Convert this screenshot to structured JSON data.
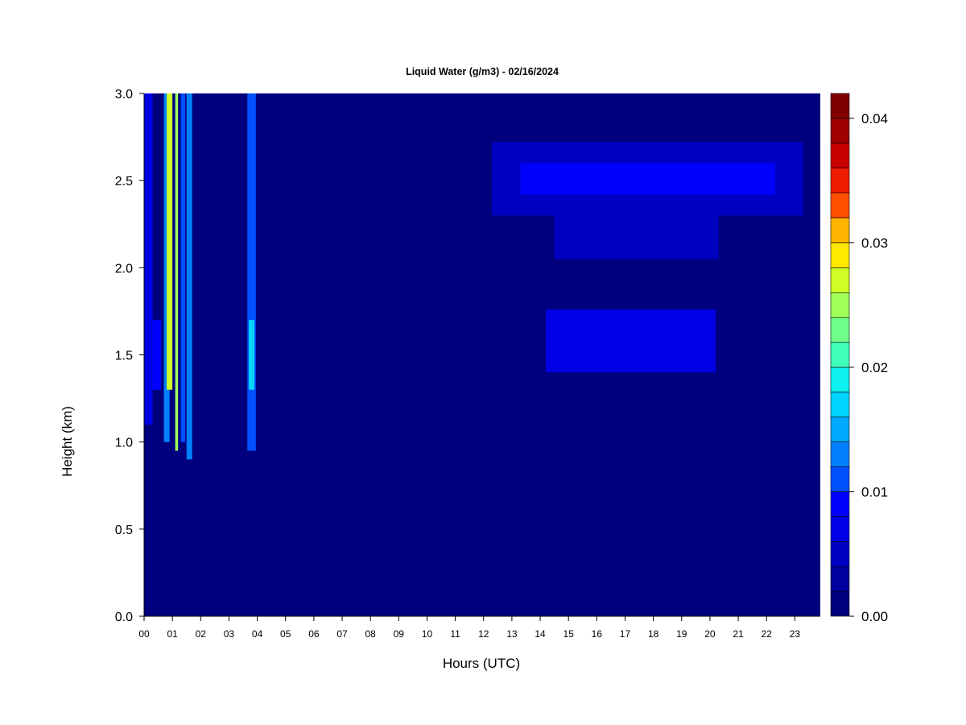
{
  "chart_data": {
    "type": "heatmap",
    "title": "Liquid Water (g/m3) - 02/16/2024",
    "xlabel": "Hours (UTC)",
    "ylabel": "Height (km)",
    "xlim": [
      0,
      23.9
    ],
    "ylim": [
      0,
      3.0
    ],
    "x_ticks": [
      "00",
      "01",
      "02",
      "03",
      "04",
      "05",
      "06",
      "07",
      "08",
      "09",
      "10",
      "11",
      "12",
      "13",
      "14",
      "15",
      "16",
      "17",
      "18",
      "19",
      "20",
      "21",
      "22",
      "23"
    ],
    "y_ticks": [
      "0.0",
      "0.5",
      "1.0",
      "1.5",
      "2.0",
      "2.5",
      "3.0"
    ],
    "colorbar": {
      "min": 0.0,
      "max": 0.042,
      "ticks": [
        "0.00",
        "0.01",
        "0.02",
        "0.03",
        "0.04"
      ],
      "levels": 21,
      "colors": [
        "#00007F",
        "#00009D",
        "#0000C3",
        "#0000E6",
        "#0000FF",
        "#0020FF",
        "#0050FF",
        "#0080FF",
        "#00A8FF",
        "#00D4FF",
        "#10F0F0",
        "#40FFB8",
        "#70FF88",
        "#A0FF58",
        "#D0FF28",
        "#FFE800",
        "#FFB400",
        "#FF8000",
        "#FF5000",
        "#F01C00",
        "#C80000",
        "#A00000",
        "#800000"
      ]
    },
    "background_value": 0.0,
    "features": [
      {
        "hour_start": 0.0,
        "hour_end": 0.3,
        "height_bottom": 1.1,
        "height_top": 3.0,
        "value": 0.007
      },
      {
        "hour_start": 0.3,
        "hour_end": 0.6,
        "height_bottom": 1.3,
        "height_top": 1.7,
        "value": 0.009
      },
      {
        "hour_start": 0.7,
        "hour_end": 0.9,
        "height_bottom": 1.0,
        "height_top": 3.0,
        "value": 0.013
      },
      {
        "hour_start": 0.8,
        "hour_end": 1.0,
        "height_bottom": 1.3,
        "height_top": 3.0,
        "value": 0.026
      },
      {
        "hour_start": 1.1,
        "hour_end": 1.2,
        "height_bottom": 0.95,
        "height_top": 3.0,
        "value": 0.024
      },
      {
        "hour_start": 1.3,
        "hour_end": 1.45,
        "height_bottom": 1.0,
        "height_top": 3.0,
        "value": 0.011
      },
      {
        "hour_start": 1.5,
        "hour_end": 1.7,
        "height_bottom": 0.9,
        "height_top": 3.0,
        "value": 0.013
      },
      {
        "hour_start": 3.65,
        "hour_end": 3.95,
        "height_bottom": 0.95,
        "height_top": 3.0,
        "value": 0.012
      },
      {
        "hour_start": 3.7,
        "hour_end": 3.9,
        "height_bottom": 1.3,
        "height_top": 1.7,
        "value": 0.018
      },
      {
        "hour_start": 12.3,
        "hour_end": 23.3,
        "height_bottom": 2.3,
        "height_top": 2.72,
        "value": 0.005
      },
      {
        "hour_start": 13.3,
        "hour_end": 22.3,
        "height_bottom": 2.42,
        "height_top": 2.6,
        "value": 0.009
      },
      {
        "hour_start": 14.5,
        "hour_end": 20.3,
        "height_bottom": 2.05,
        "height_top": 2.3,
        "value": 0.005
      },
      {
        "hour_start": 14.2,
        "hour_end": 20.2,
        "height_bottom": 1.4,
        "height_top": 1.76,
        "value": 0.006
      }
    ]
  }
}
